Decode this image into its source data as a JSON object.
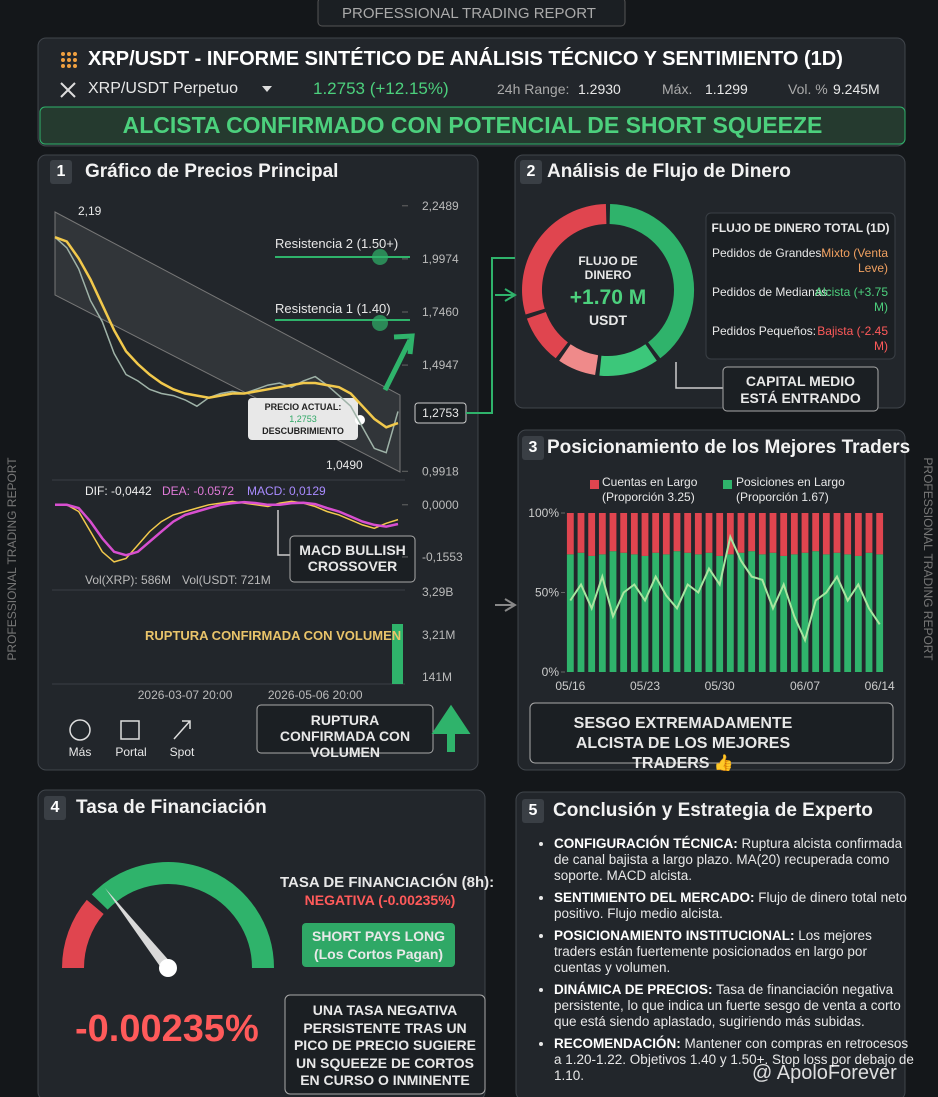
{
  "banner": "PROFESSIONAL TRADING REPORT",
  "side_label": "PROFESSIONAL TRADING REPORT",
  "header": {
    "title": "XRP/USDT - INFORME SINTÉTICO DE ANÁLISIS TÉCNICO Y SENTIMIENTO (1D)",
    "pair": "XRP/USDT Perpetuo",
    "price": "1.2753 (+12.15%)",
    "range_label": "24h Range:",
    "range_value": "1.2930",
    "max_label": "Máx.",
    "max_value": "1.1299",
    "vol_label": "Vol. %",
    "vol_value": "9.245M",
    "verdict": "ALCISTA CONFIRMADO CON POTENCIAL DE SHORT SQUEEZE"
  },
  "price_panel": {
    "number": "1",
    "title": "Gráfico de Precios Principal",
    "chart_data": [
      {
        "type": "line",
        "categories": [
          null,
          null,
          null,
          null,
          null,
          null,
          null,
          null,
          null,
          null,
          null,
          "2026-03-07 20:00",
          null,
          null,
          null,
          null,
          null,
          null,
          null,
          null,
          null,
          null,
          "2026-05-06 20:00",
          null,
          null,
          null,
          null,
          null,
          null,
          null
        ],
        "series": [
          {
            "color": "#9fb3a8",
            "values": [
              2.1,
              2.05,
              1.95,
              1.8,
              1.7,
              1.55,
              1.45,
              1.42,
              1.38,
              1.36,
              1.35,
              1.33,
              1.3,
              1.34,
              1.36,
              1.37,
              1.36,
              1.38,
              1.4,
              1.41,
              1.39,
              1.42,
              1.44,
              1.4,
              1.35,
              1.3,
              1.2,
              1.1,
              1.08,
              1.2753
            ]
          },
          {
            "color": "#f2c94c",
            "values": [
              2.1,
              2.08,
              2.0,
              1.9,
              1.78,
              1.66,
              1.56,
              1.5,
              1.45,
              1.41,
              1.38,
              1.36,
              1.35,
              1.34,
              1.35,
              1.36,
              1.36,
              1.37,
              1.38,
              1.39,
              1.4,
              1.41,
              1.41,
              1.4,
              1.39,
              1.36,
              1.3,
              1.24,
              1.2,
              1.22
            ]
          }
        ],
        "ylim": [
          0.96,
          2.3
        ],
        "yticks": [
          {
            "value": 2.2489,
            "label": "2,2489"
          },
          {
            "value": 1.9974,
            "label": "1,9974"
          },
          {
            "value": 1.746,
            "label": "1,7460"
          },
          {
            "value": 1.4947,
            "label": "1,4947"
          },
          {
            "value": 0.9918,
            "label": "0,9918"
          }
        ]
      },
      {
        "type": "line",
        "series": [
          {
            "color": "#f2c94c",
            "values": [
              0,
              0,
              -0.02,
              -0.08,
              -0.14,
              -0.17,
              -0.16,
              -0.12,
              -0.08,
              -0.05,
              -0.03,
              -0.02,
              -0.01,
              0,
              0.005,
              0.01,
              0.005,
              0,
              -0.005,
              0.005,
              0.01,
              0.005,
              -0.005,
              -0.02,
              -0.03,
              -0.045,
              -0.06,
              -0.07,
              -0.055,
              -0.0442
            ]
          },
          {
            "color": "#d84fd0",
            "values": [
              0,
              0,
              -0.01,
              -0.05,
              -0.1,
              -0.14,
              -0.15,
              -0.14,
              -0.11,
              -0.08,
              -0.05,
              -0.03,
              -0.02,
              -0.01,
              0,
              0.005,
              0.008,
              0.005,
              0,
              0,
              0.005,
              0.006,
              0.002,
              -0.01,
              -0.02,
              -0.035,
              -0.05,
              -0.06,
              -0.065,
              -0.0572
            ]
          }
        ],
        "ylim": [
          -0.224,
          0.05
        ],
        "yticks": [
          {
            "value": 0,
            "label": "0,0000"
          },
          {
            "value": -0.1553,
            "label": "-0,1553"
          }
        ],
        "legend": [
          "DIF: -0,0442",
          "DEA: -0.0572",
          "MACD: 0,0129"
        ]
      }
    ],
    "high_label": "2,19",
    "low_label": "1,0490",
    "resistance_2": "Resistencia 2 (1.50+)",
    "resistance_1": "Resistencia 1 (1.40)",
    "current_title": "PRECIO ACTUAL:",
    "current_value": "1,2753",
    "current_note": "DESCUBRIMIENTO",
    "current_tag": "1,2753",
    "macd_callout": "MACD BULLISH CROSSOVER",
    "vol_xrp": "Vol(XRP): 586M",
    "vol_usdt": "Vol(USDT: 721M",
    "vol_ticks": [
      "3,29B",
      "3,21M",
      "141M"
    ],
    "volume_banner": "RUPTURA CONFIRMADA CON VOLUMEN",
    "volume_callout": "RUPTURA CONFIRMADA CON VOLUMEN",
    "toolbar": [
      "Más",
      "Portal",
      "Spot"
    ]
  },
  "money_flow": {
    "number": "2",
    "title": "Análisis de Flujo de Dinero",
    "center_title": "FLUJO DE DINERO",
    "center_value": "+1.70 M",
    "center_unit": "USDT",
    "chart_data": {
      "type": "pie",
      "values": [
        40,
        12,
        8,
        10,
        30
      ],
      "colors": [
        "#2fb36b",
        "#3cc77a",
        "#ef8a8a",
        "#e0454f",
        "#e0454f"
      ]
    },
    "table_title": "FLUJO DE DINERO TOTAL (1D)",
    "rows": [
      [
        "Pedidos de Grandes:",
        "Mixto (Venta Leve)"
      ],
      [
        "Pedidos de Medianas:",
        "Alcista (+3.75 M)"
      ],
      [
        "Pedidos Pequeños:",
        "Bajista (-2.45 M)"
      ]
    ],
    "row_colors": [
      "#f0a060",
      "#4cd07d",
      "#ff5a5a"
    ],
    "callout": "CAPITAL MEDIO ESTÁ ENTRANDO"
  },
  "top_traders": {
    "number": "3",
    "title": "Posicionamiento de los Mejores Traders",
    "chart_data": {
      "type": "bar",
      "stacked": true,
      "categories": [
        "05/16",
        null,
        null,
        null,
        null,
        null,
        null,
        "05/23",
        null,
        null,
        null,
        null,
        null,
        null,
        "05/30",
        null,
        null,
        null,
        null,
        null,
        null,
        null,
        "06/07",
        null,
        null,
        null,
        null,
        null,
        null,
        "06/14"
      ],
      "series": [
        {
          "name": "Cuentas en Largo",
          "color": "#e0454f",
          "values": [
            26,
            25,
            27,
            26,
            24,
            25,
            26,
            27,
            25,
            26,
            24,
            25,
            26,
            25,
            27,
            26,
            25,
            24,
            26,
            25,
            27,
            26,
            25,
            24,
            26,
            25,
            26,
            27,
            25,
            26
          ]
        },
        {
          "name": "Posiciones en Largo",
          "color": "#2fb36b",
          "values": [
            74,
            75,
            73,
            74,
            76,
            75,
            74,
            73,
            75,
            74,
            76,
            75,
            74,
            75,
            73,
            74,
            75,
            76,
            74,
            75,
            73,
            74,
            75,
            76,
            74,
            75,
            74,
            73,
            75,
            74
          ]
        }
      ],
      "legend_notes": [
        "(Proporción 3.25)",
        "(Proporción 1.67)"
      ],
      "line": {
        "color": "#a8e6a0",
        "values": [
          45,
          55,
          40,
          60,
          35,
          50,
          55,
          45,
          60,
          48,
          40,
          55,
          50,
          65,
          55,
          85,
          70,
          60,
          58,
          40,
          55,
          35,
          20,
          45,
          50,
          60,
          45,
          55,
          40,
          30
        ]
      },
      "ylim": [
        0,
        100
      ],
      "yticks": [
        {
          "value": 100,
          "label": "100%"
        },
        {
          "value": 50,
          "label": "50%"
        },
        {
          "value": 0,
          "label": "0%"
        }
      ]
    },
    "callout": "SESGO EXTREMADAMENTE ALCISTA DE LOS MEJORES TRADERS 👍"
  },
  "funding": {
    "number": "4",
    "title": "Tasa de Financiación",
    "rate_label": "TASA DE FINANCIACIÓN (8h):",
    "rate_status": "NEGATIVA (-0.00235%)",
    "badge_title": "SHORT PAYS LONG",
    "badge_note": "(Los Cortos Pagan)",
    "big_value": "-0.00235%",
    "callout": "UNA TASA NEGATIVA PERSISTENTE TRAS UN PICO DE PRECIO SUGIERE UN SQUEEZE DE CORTOS EN CURSO O INMINENTE"
  },
  "conclusion": {
    "number": "5",
    "title": "Conclusión y Estrategia de Experto",
    "items": [
      {
        "label": "CONFIGURACIÓN TÉCNICA:",
        "text": "Ruptura alcista confirmada de canal bajista a largo plazo. MA(20) recuperada como soporte. MACD alcista."
      },
      {
        "label": "SENTIMIENTO DEL MERCADO:",
        "text": "Flujo de dinero total neto positivo. Flujo medio alcista."
      },
      {
        "label": "POSICIONAMIENTO INSTITUCIONAL:",
        "text": "Los mejores traders están fuertemente posicionados en largo por cuentas y volumen."
      },
      {
        "label": "DINÁMICA DE PRECIOS:",
        "text": "Tasa de financiación negativa persistente, lo que indica un fuerte sesgo de venta a corto que está siendo aplastado, sugiriendo más subidas."
      },
      {
        "label": "RECOMENDACIÓN:",
        "text": "Mantener con compras en retrocesos a 1.20-1.22. Objetivos 1.40 y 1.50+. Stop loss por debajo de 1.10."
      }
    ]
  },
  "watermark": "@ ApoloForever"
}
